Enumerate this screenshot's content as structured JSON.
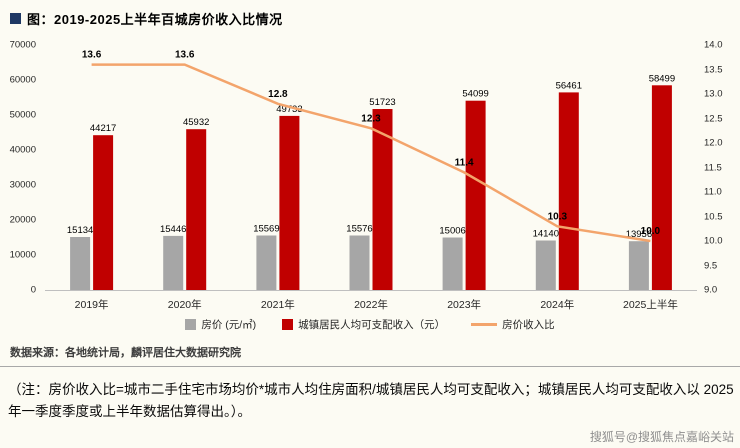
{
  "title": "图：2019-2025上半年百城房价收入比情况",
  "chart_data": {
    "type": "bar",
    "subtype": "bar+line combo",
    "categories": [
      "2019年",
      "2020年",
      "2021年",
      "2022年",
      "2023年",
      "2024年",
      "2025上半年"
    ],
    "series": [
      {
        "name": "房价 (元/㎡)",
        "type": "bar",
        "axis": "left",
        "color": "#a6a6a6",
        "values": [
          15134,
          15446,
          15569,
          15576,
          15006,
          14140,
          13956
        ],
        "labels": [
          "15134",
          "15446",
          "15569",
          "15576",
          "15006",
          "14140",
          "13956"
        ]
      },
      {
        "name": "城镇居民人均可支配收入（元）",
        "type": "bar",
        "axis": "left",
        "color": "#c00000",
        "values": [
          44217,
          45932,
          49733,
          51723,
          54099,
          56461,
          58499
        ],
        "labels": [
          "44217",
          "45932",
          "49733",
          "51723",
          "54099",
          "56461",
          "58499"
        ]
      },
      {
        "name": "房价收入比",
        "type": "line",
        "axis": "right",
        "color": "#f3a46b",
        "values": [
          13.6,
          13.6,
          12.8,
          12.3,
          11.4,
          10.3,
          10.0
        ],
        "labels": [
          "13.6",
          "13.6",
          "12.8",
          "12.3",
          "11.4",
          "10.3",
          "10.0"
        ]
      }
    ],
    "left_axis": {
      "min": 0,
      "max": 70000,
      "step": 10000,
      "ticks": [
        "70000",
        "60000",
        "50000",
        "40000",
        "30000",
        "20000",
        "10000",
        "0"
      ]
    },
    "right_axis": {
      "min": 9.0,
      "max": 14.0,
      "step": 0.5,
      "ticks": [
        "14.0",
        "13.5",
        "13.0",
        "12.5",
        "12.0",
        "11.5",
        "11.0",
        "10.5",
        "10.0",
        "9.5",
        "9.0"
      ]
    },
    "grid": false,
    "legend_position": "bottom"
  },
  "legend": {
    "items": [
      {
        "type": "bar",
        "color": "#a6a6a6",
        "label": "房价 (元/㎡)"
      },
      {
        "type": "bar",
        "color": "#c00000",
        "label": "城镇居民人均可支配收入（元）"
      },
      {
        "type": "line",
        "color": "#f3a46b",
        "label": "房价收入比"
      }
    ]
  },
  "source": "数据来源：各地统计局，麟评居住大数据研究院",
  "note": "（注：房价收入比=城市二手住宅市场均价*城市人均住房面积/城镇居民人均可支配收入；城镇居民人均可支配收入以 2025 年一季度季度或上半年数据估算得出。）。",
  "watermark": "搜狐号@搜狐焦点嘉峪关站",
  "colors": {
    "background": "#fcfbf3",
    "title_bullet": "#1f3864",
    "bar_gray": "#a6a6a6",
    "bar_red": "#c00000",
    "line_orange": "#f3a46b"
  }
}
